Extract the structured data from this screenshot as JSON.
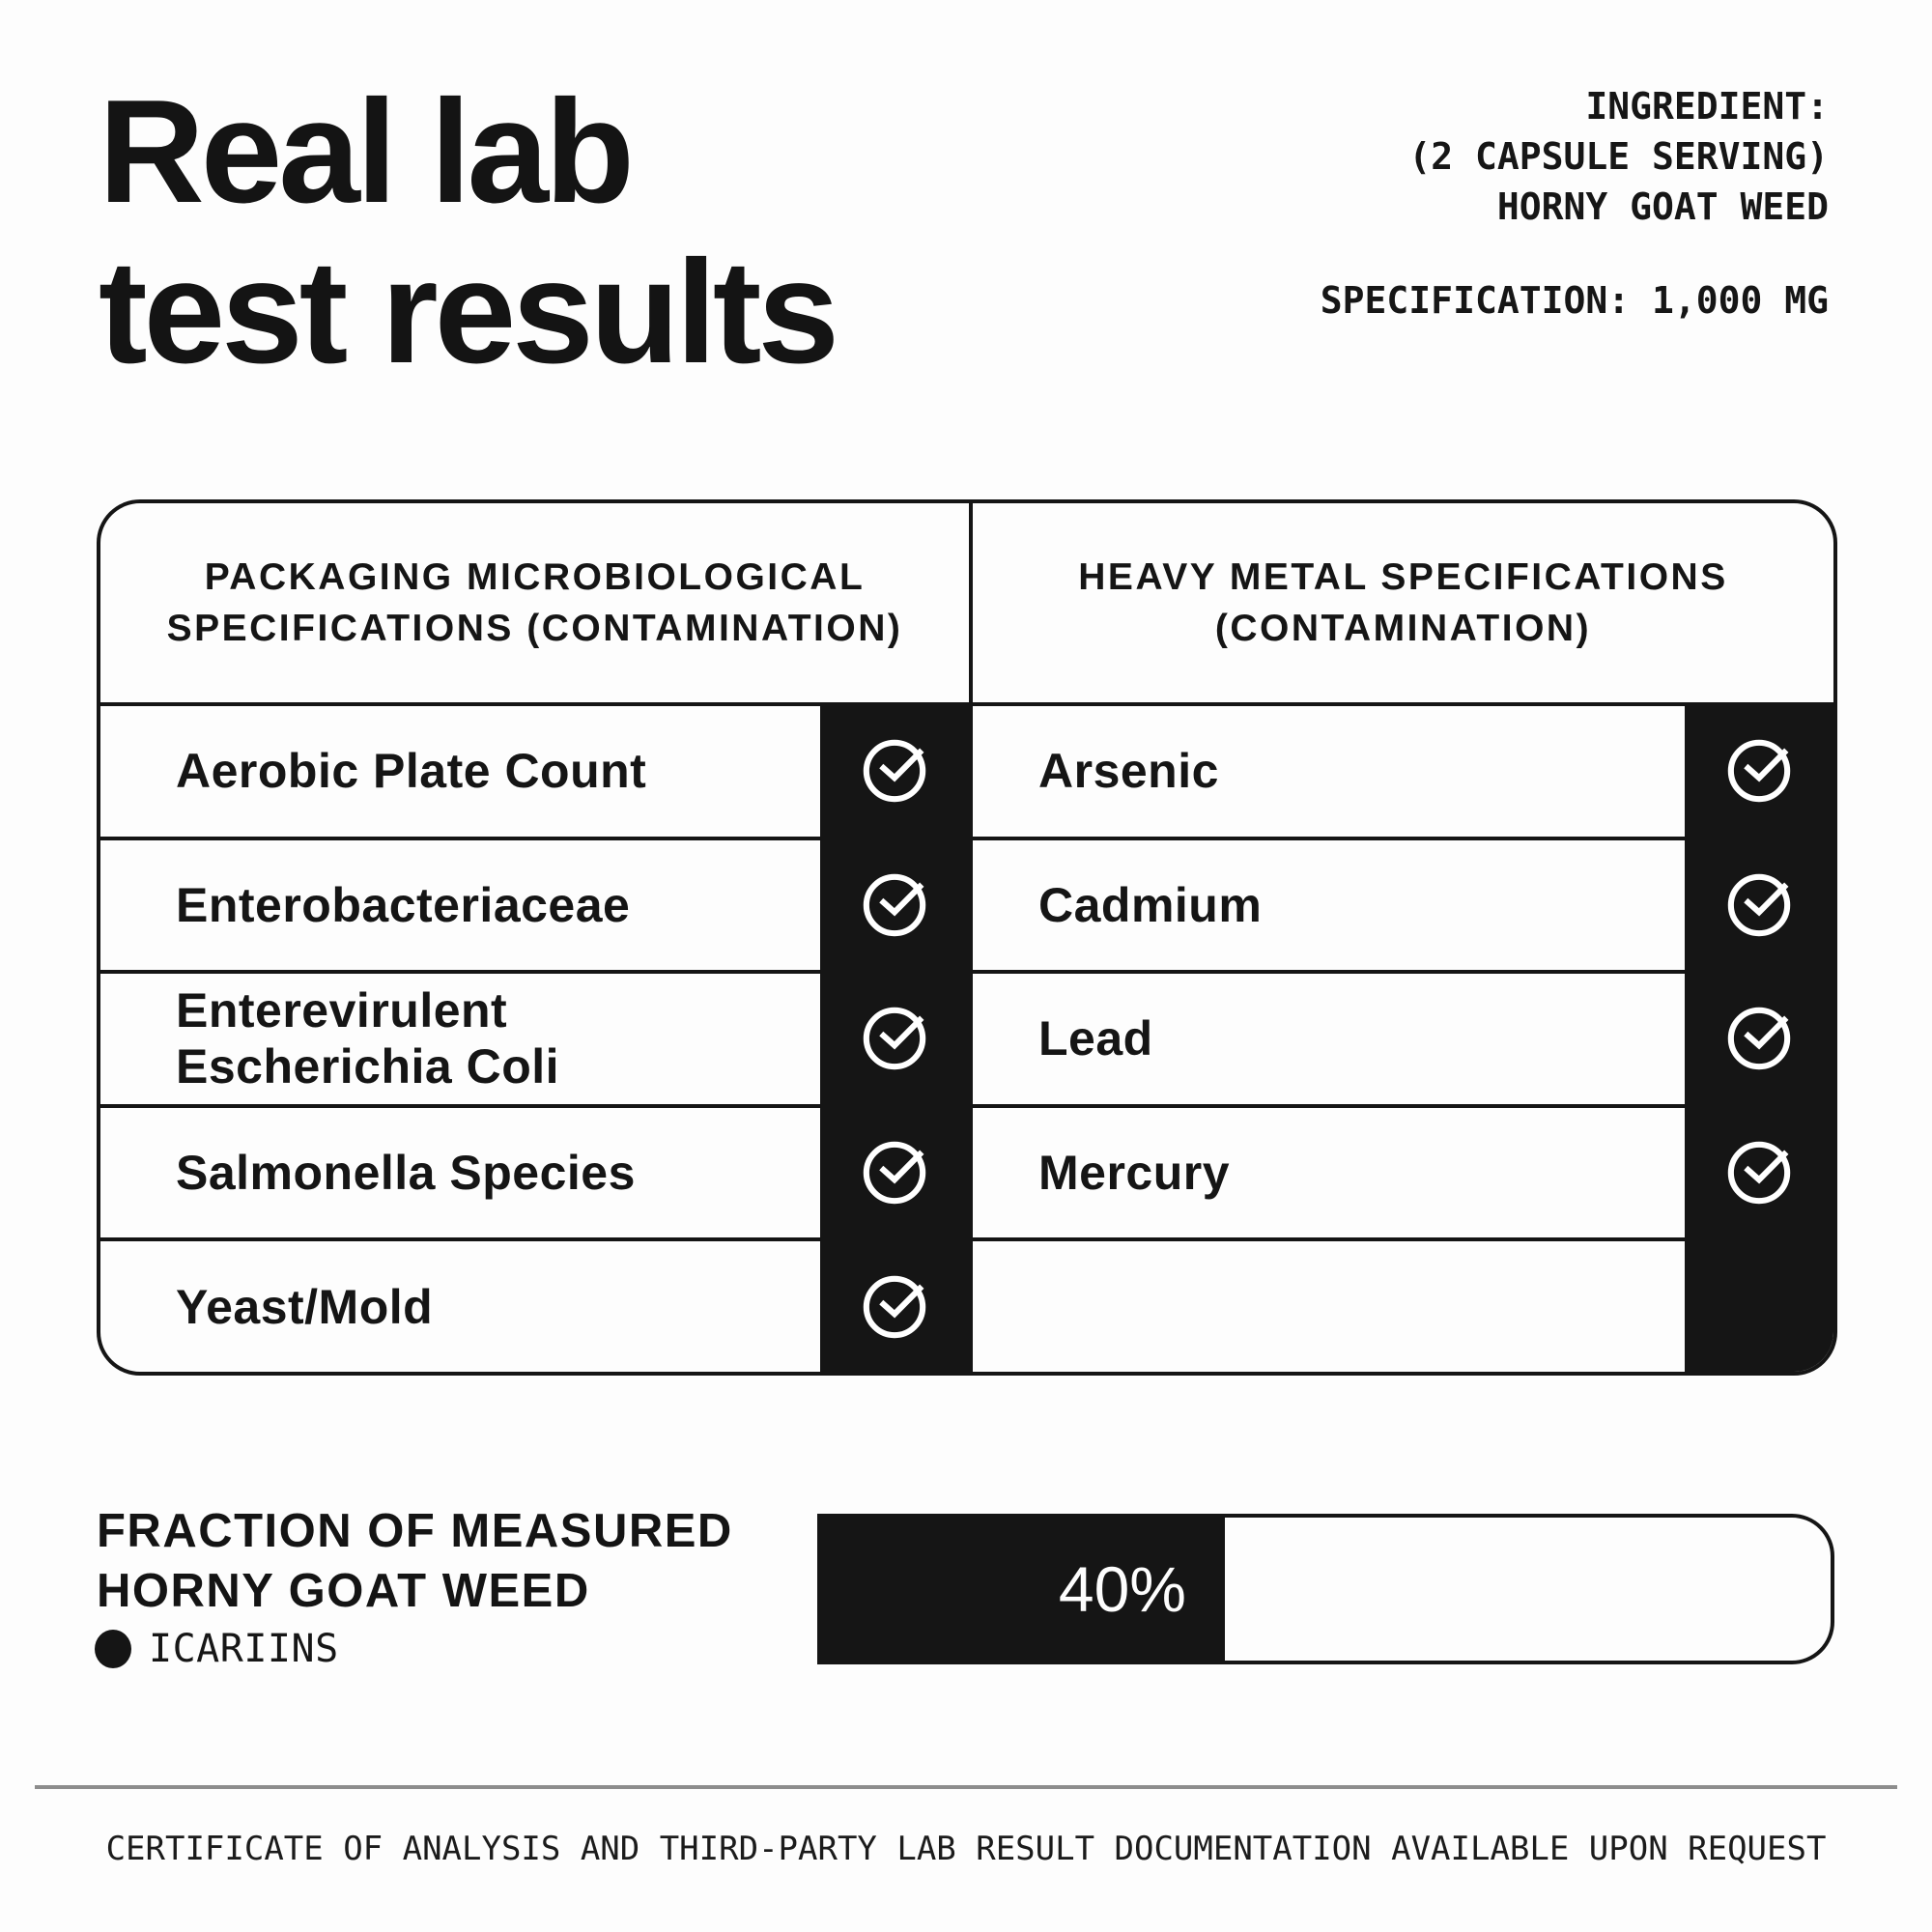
{
  "title": "Real lab\ntest results",
  "ingredient": {
    "label": "INGREDIENT:",
    "serving": "(2 CAPSULE SERVING)",
    "name": "HORNY GOAT WEED",
    "specification": "SPECIFICATION: 1,000 MG"
  },
  "table": {
    "micro": {
      "header": "PACKAGING MICROBIOLOGICAL\nSPECIFICATIONS (CONTAMINATION)",
      "rows": [
        {
          "label": "Aerobic Plate Count",
          "checked": true
        },
        {
          "label": "Enterobacteriaceae",
          "checked": true
        },
        {
          "label": "Enterevirulent\nEscherichia Coli",
          "checked": true
        },
        {
          "label": "Salmonella Species",
          "checked": true
        },
        {
          "label": "Yeast/Mold",
          "checked": true
        }
      ]
    },
    "heavy_metal": {
      "header": "HEAVY METAL SPECIFICATIONS\n(CONTAMINATION)",
      "rows": [
        {
          "label": "Arsenic",
          "checked": true
        },
        {
          "label": "Cadmium",
          "checked": true
        },
        {
          "label": "Lead",
          "checked": true
        },
        {
          "label": "Mercury",
          "checked": true
        },
        {
          "label": "",
          "checked": false
        }
      ]
    }
  },
  "fraction": {
    "label": "FRACTION OF MEASURED\nHORNY GOAT WEED",
    "legend": "ICARIINS",
    "value": "40%",
    "percent": 40
  },
  "footer": {
    "note": "CERTIFICATE OF ANALYSIS AND THIRD-PARTY LAB RESULT DOCUMENTATION AVAILABLE UPON REQUEST"
  },
  "colors": {
    "ink": "#151515",
    "background": "#fdfdfd",
    "check_icon": "#ffffff",
    "divider_gray": "#8d8d8d"
  }
}
